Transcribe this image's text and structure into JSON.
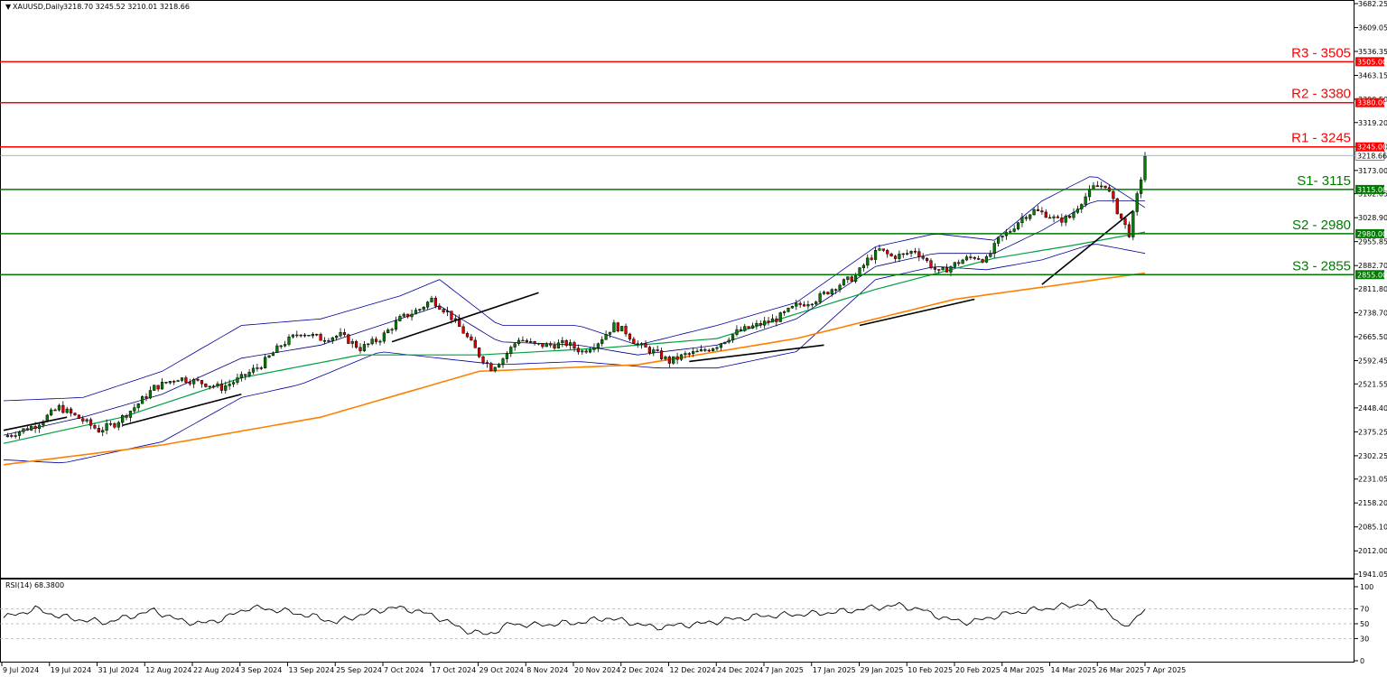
{
  "header": {
    "symbol": "XAUUSD,Daily",
    "ohlc": "3218.70 3245.52 3210.01 3218.66"
  },
  "rsi_header": "RSI(14) 68.3800",
  "colors": {
    "bull": "#008000",
    "bear": "#e00000",
    "resistance": "#ff0000",
    "support": "#007a00",
    "ma_fast": "#000080",
    "ma_mid": "#00a040",
    "ma_slow": "#ff8000",
    "bollinger": "#0000a0"
  },
  "chart_data": {
    "type": "candlestick",
    "instrument": "XAUUSD",
    "timeframe": "Daily",
    "y_axis_ticks": [
      "3682.25",
      "3609.05",
      "3536.35",
      "3463.15",
      "3390.50",
      "3319.20",
      "3245.00",
      "3173.00",
      "3102.05",
      "3028.90",
      "2955.85",
      "2882.70",
      "2811.80",
      "2738.70",
      "2665.50",
      "2592.45",
      "2521.55",
      "2448.40",
      "2375.25",
      "2302.25",
      "2231.05",
      "2158.20",
      "2085.10",
      "2012.00",
      "1941.05"
    ],
    "ylim": [
      1941.05,
      3682.25
    ],
    "x_axis_ticks": [
      "9 Jul 2024",
      "19 Jul 2024",
      "31 Jul 2024",
      "12 Aug 2024",
      "22 Aug 2024",
      "3 Sep 2024",
      "13 Sep 2024",
      "25 Sep 2024",
      "7 Oct 2024",
      "17 Oct 2024",
      "29 Oct 2024",
      "8 Nov 2024",
      "20 Nov 2024",
      "2 Dec 2024",
      "12 Dec 2024",
      "24 Dec 2024",
      "7 Jan 2025",
      "17 Jan 2025",
      "29 Jan 2025",
      "10 Feb 2025",
      "20 Feb 2025",
      "4 Mar 2025",
      "14 Mar 2025",
      "26 Mar 2025",
      "7 Apr 2025"
    ],
    "price_tags": [
      {
        "value": "3505.00",
        "kind": "resistance"
      },
      {
        "value": "3380.00",
        "kind": "resistance"
      },
      {
        "value": "3245.00",
        "kind": "resistance"
      },
      {
        "value": "3218.66",
        "kind": "current"
      },
      {
        "value": "3115.00",
        "kind": "support"
      },
      {
        "value": "2980.00",
        "kind": "support"
      },
      {
        "value": "2855.00",
        "kind": "support"
      }
    ],
    "levels": [
      {
        "label": "R3 - 3505",
        "value": 3505,
        "kind": "resistance"
      },
      {
        "label": "R2 - 3380",
        "value": 3380,
        "kind": "resistance"
      },
      {
        "label": "R1 - 3245",
        "value": 3245,
        "kind": "resistance"
      },
      {
        "label": "S1- 3115",
        "value": 3115,
        "kind": "support"
      },
      {
        "label": "S2 - 2980",
        "value": 2980,
        "kind": "support"
      },
      {
        "label": "S3 - 2855",
        "value": 2855,
        "kind": "support"
      }
    ],
    "current_price": 3218.66,
    "close_path": [
      [
        0,
        2360
      ],
      [
        8,
        2395
      ],
      [
        14,
        2450
      ],
      [
        20,
        2410
      ],
      [
        24,
        2380
      ],
      [
        28,
        2400
      ],
      [
        33,
        2450
      ],
      [
        38,
        2510
      ],
      [
        44,
        2540
      ],
      [
        50,
        2525
      ],
      [
        55,
        2510
      ],
      [
        60,
        2540
      ],
      [
        65,
        2580
      ],
      [
        70,
        2640
      ],
      [
        75,
        2680
      ],
      [
        80,
        2660
      ],
      [
        85,
        2670
      ],
      [
        90,
        2630
      ],
      [
        95,
        2660
      ],
      [
        100,
        2720
      ],
      [
        105,
        2750
      ],
      [
        108,
        2780
      ],
      [
        112,
        2740
      ],
      [
        116,
        2680
      ],
      [
        120,
        2610
      ],
      [
        123,
        2570
      ],
      [
        126,
        2600
      ],
      [
        130,
        2660
      ],
      [
        134,
        2640
      ],
      [
        138,
        2640
      ],
      [
        142,
        2645
      ],
      [
        146,
        2620
      ],
      [
        150,
        2650
      ],
      [
        154,
        2700
      ],
      [
        157,
        2680
      ],
      [
        160,
        2640
      ],
      [
        164,
        2620
      ],
      [
        168,
        2590
      ],
      [
        172,
        2610
      ],
      [
        176,
        2620
      ],
      [
        180,
        2640
      ],
      [
        185,
        2680
      ],
      [
        190,
        2700
      ],
      [
        195,
        2720
      ],
      [
        200,
        2760
      ],
      [
        205,
        2780
      ],
      [
        210,
        2820
      ],
      [
        215,
        2850
      ],
      [
        218,
        2900
      ],
      [
        221,
        2930
      ],
      [
        224,
        2910
      ],
      [
        227,
        2915
      ],
      [
        230,
        2930
      ],
      [
        233,
        2895
      ],
      [
        236,
        2860
      ],
      [
        239,
        2880
      ],
      [
        242,
        2900
      ],
      [
        245,
        2910
      ],
      [
        248,
        2900
      ],
      [
        251,
        2960
      ],
      [
        254,
        2990
      ],
      [
        257,
        3030
      ],
      [
        260,
        3050
      ],
      [
        263,
        3040
      ],
      [
        266,
        3020
      ],
      [
        269,
        3030
      ],
      [
        272,
        3080
      ],
      [
        275,
        3120
      ],
      [
        278,
        3130
      ],
      [
        281,
        3050
      ],
      [
        284,
        2980
      ],
      [
        287,
        3150
      ],
      [
        288,
        3218
      ]
    ],
    "ma_slow_path": [
      [
        0,
        2275
      ],
      [
        40,
        2335
      ],
      [
        80,
        2420
      ],
      [
        120,
        2560
      ],
      [
        160,
        2580
      ],
      [
        200,
        2660
      ],
      [
        240,
        2780
      ],
      [
        270,
        2830
      ],
      [
        288,
        2860
      ]
    ],
    "ma_mid_path": [
      [
        0,
        2340
      ],
      [
        30,
        2420
      ],
      [
        60,
        2540
      ],
      [
        90,
        2610
      ],
      [
        120,
        2610
      ],
      [
        150,
        2630
      ],
      [
        180,
        2660
      ],
      [
        220,
        2810
      ],
      [
        250,
        2905
      ],
      [
        270,
        2945
      ],
      [
        288,
        2985
      ]
    ],
    "bb_upper_path": [
      [
        0,
        2470
      ],
      [
        20,
        2480
      ],
      [
        40,
        2560
      ],
      [
        60,
        2700
      ],
      [
        80,
        2720
      ],
      [
        100,
        2790
      ],
      [
        110,
        2840
      ],
      [
        125,
        2700
      ],
      [
        145,
        2700
      ],
      [
        160,
        2640
      ],
      [
        180,
        2700
      ],
      [
        200,
        2770
      ],
      [
        220,
        2940
      ],
      [
        235,
        2980
      ],
      [
        250,
        2960
      ],
      [
        262,
        3080
      ],
      [
        275,
        3160
      ],
      [
        288,
        3060
      ]
    ],
    "bb_lower_path": [
      [
        0,
        2290
      ],
      [
        15,
        2280
      ],
      [
        40,
        2345
      ],
      [
        60,
        2480
      ],
      [
        75,
        2520
      ],
      [
        95,
        2620
      ],
      [
        110,
        2600
      ],
      [
        125,
        2580
      ],
      [
        145,
        2590
      ],
      [
        165,
        2570
      ],
      [
        180,
        2570
      ],
      [
        200,
        2620
      ],
      [
        220,
        2840
      ],
      [
        235,
        2880
      ],
      [
        248,
        2870
      ],
      [
        262,
        2900
      ],
      [
        275,
        2950
      ],
      [
        288,
        2920
      ]
    ],
    "ma_fast_path": [
      [
        0,
        2365
      ],
      [
        20,
        2420
      ],
      [
        40,
        2490
      ],
      [
        60,
        2600
      ],
      [
        80,
        2640
      ],
      [
        100,
        2720
      ],
      [
        110,
        2760
      ],
      [
        125,
        2650
      ],
      [
        145,
        2640
      ],
      [
        160,
        2610
      ],
      [
        180,
        2640
      ],
      [
        200,
        2720
      ],
      [
        220,
        2880
      ],
      [
        235,
        2920
      ],
      [
        250,
        2920
      ],
      [
        262,
        2990
      ],
      [
        275,
        3080
      ],
      [
        288,
        3080
      ]
    ],
    "trendlines": [
      {
        "from": [
          0,
          2380
        ],
        "to": [
          16,
          2420
        ]
      },
      {
        "from": [
          30,
          2395
        ],
        "to": [
          60,
          2490
        ]
      },
      {
        "from": [
          98,
          2650
        ],
        "to": [
          135,
          2800
        ]
      },
      {
        "from": [
          173,
          2590
        ],
        "to": [
          207,
          2640
        ]
      },
      {
        "from": [
          216,
          2700
        ],
        "to": [
          245,
          2780
        ]
      },
      {
        "from": [
          262,
          2825
        ],
        "to": [
          285,
          3050
        ]
      }
    ],
    "rsi": {
      "label": "RSI(14) 68.3800",
      "value": 68.38,
      "levels": [
        70,
        50,
        30
      ],
      "y_ticks": [
        "100",
        "70",
        "50",
        "30",
        "0"
      ],
      "path": [
        [
          0,
          58
        ],
        [
          8,
          70
        ],
        [
          14,
          60
        ],
        [
          20,
          55
        ],
        [
          26,
          52
        ],
        [
          32,
          60
        ],
        [
          38,
          68
        ],
        [
          44,
          55
        ],
        [
          50,
          50
        ],
        [
          56,
          58
        ],
        [
          62,
          72
        ],
        [
          70,
          68
        ],
        [
          78,
          60
        ],
        [
          84,
          52
        ],
        [
          90,
          62
        ],
        [
          98,
          72
        ],
        [
          104,
          68
        ],
        [
          110,
          58
        ],
        [
          116,
          42
        ],
        [
          122,
          35
        ],
        [
          128,
          50
        ],
        [
          134,
          48
        ],
        [
          140,
          50
        ],
        [
          146,
          52
        ],
        [
          152,
          58
        ],
        [
          158,
          52
        ],
        [
          164,
          45
        ],
        [
          170,
          48
        ],
        [
          176,
          50
        ],
        [
          182,
          55
        ],
        [
          190,
          60
        ],
        [
          198,
          62
        ],
        [
          206,
          64
        ],
        [
          214,
          68
        ],
        [
          220,
          72
        ],
        [
          226,
          75
        ],
        [
          232,
          68
        ],
        [
          238,
          56
        ],
        [
          244,
          52
        ],
        [
          250,
          60
        ],
        [
          256,
          66
        ],
        [
          262,
          70
        ],
        [
          268,
          74
        ],
        [
          274,
          78
        ],
        [
          278,
          70
        ],
        [
          282,
          45
        ],
        [
          285,
          55
        ],
        [
          288,
          68
        ]
      ]
    }
  }
}
